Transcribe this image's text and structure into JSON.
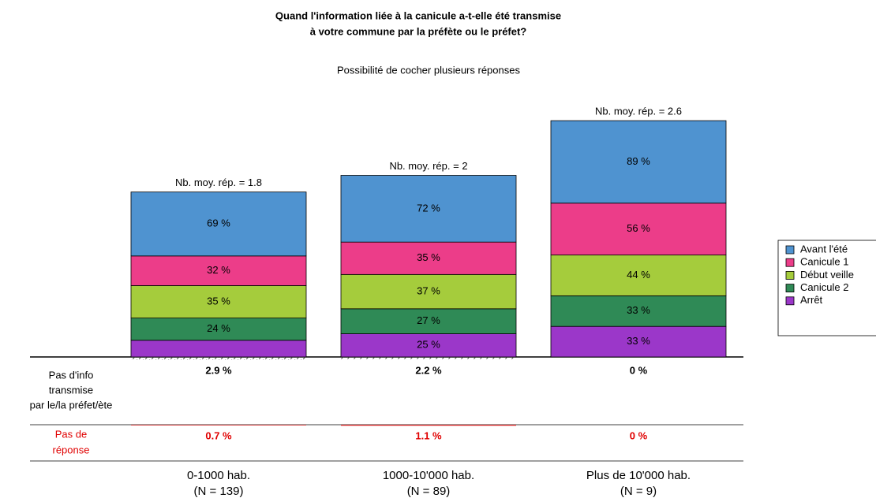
{
  "chart_data": {
    "type": "stacked_bar",
    "title": [
      "Quand l'information liée à la canicule a-t-elle été transmise",
      "à votre commune par la préfète ou le préfet?"
    ],
    "subtitle": "Possibilité de cocher plusieurs réponses",
    "categories": [
      "0-1000 hab.",
      "1000-10'000 hab.",
      "Plus de 10'000 hab."
    ],
    "n_labels": [
      "(N = 139)",
      "(N = 89)",
      "(N = 9)"
    ],
    "total_labels": [
      "Nb. moy. rép. = 1.8",
      "Nb. moy. rép. = 2",
      "Nb. moy. rép. = 2.6"
    ],
    "series": [
      {
        "name": "Arrêt",
        "color": "#9b37c9",
        "values": [
          18,
          25,
          33
        ],
        "value_labels": [
          null,
          "25 %",
          "33 %"
        ]
      },
      {
        "name": "Canicule 2",
        "color": "#2f8a56",
        "values": [
          24,
          27,
          33
        ],
        "value_labels": [
          "24 %",
          "27 %",
          "33 %"
        ]
      },
      {
        "name": "Début veille",
        "color": "#a5cc3c",
        "values": [
          35,
          37,
          44
        ],
        "value_labels": [
          "35 %",
          "37 %",
          "44 %"
        ]
      },
      {
        "name": "Canicule 1",
        "color": "#ec3d89",
        "values": [
          32,
          35,
          56
        ],
        "value_labels": [
          "32 %",
          "35 %",
          "56 %"
        ]
      },
      {
        "name": "Avant l'été",
        "color": "#4f93d0",
        "values": [
          69,
          72,
          89
        ],
        "value_labels": [
          "69 %",
          "72 %",
          "89 %"
        ]
      }
    ],
    "no_info": {
      "label": [
        "Pas d'info",
        "transmise",
        "par le/la préfet/ète"
      ],
      "values": [
        2.9,
        2.2,
        0
      ],
      "value_labels": [
        "2.9 %",
        "2.2 %",
        "0 %"
      ]
    },
    "no_answer": {
      "label": [
        "Pas de",
        "réponse"
      ],
      "color": "#e00000",
      "values": [
        0.7,
        1.1,
        0
      ],
      "value_labels": [
        "0.7 %",
        "1.1 %",
        "0 %"
      ]
    }
  }
}
